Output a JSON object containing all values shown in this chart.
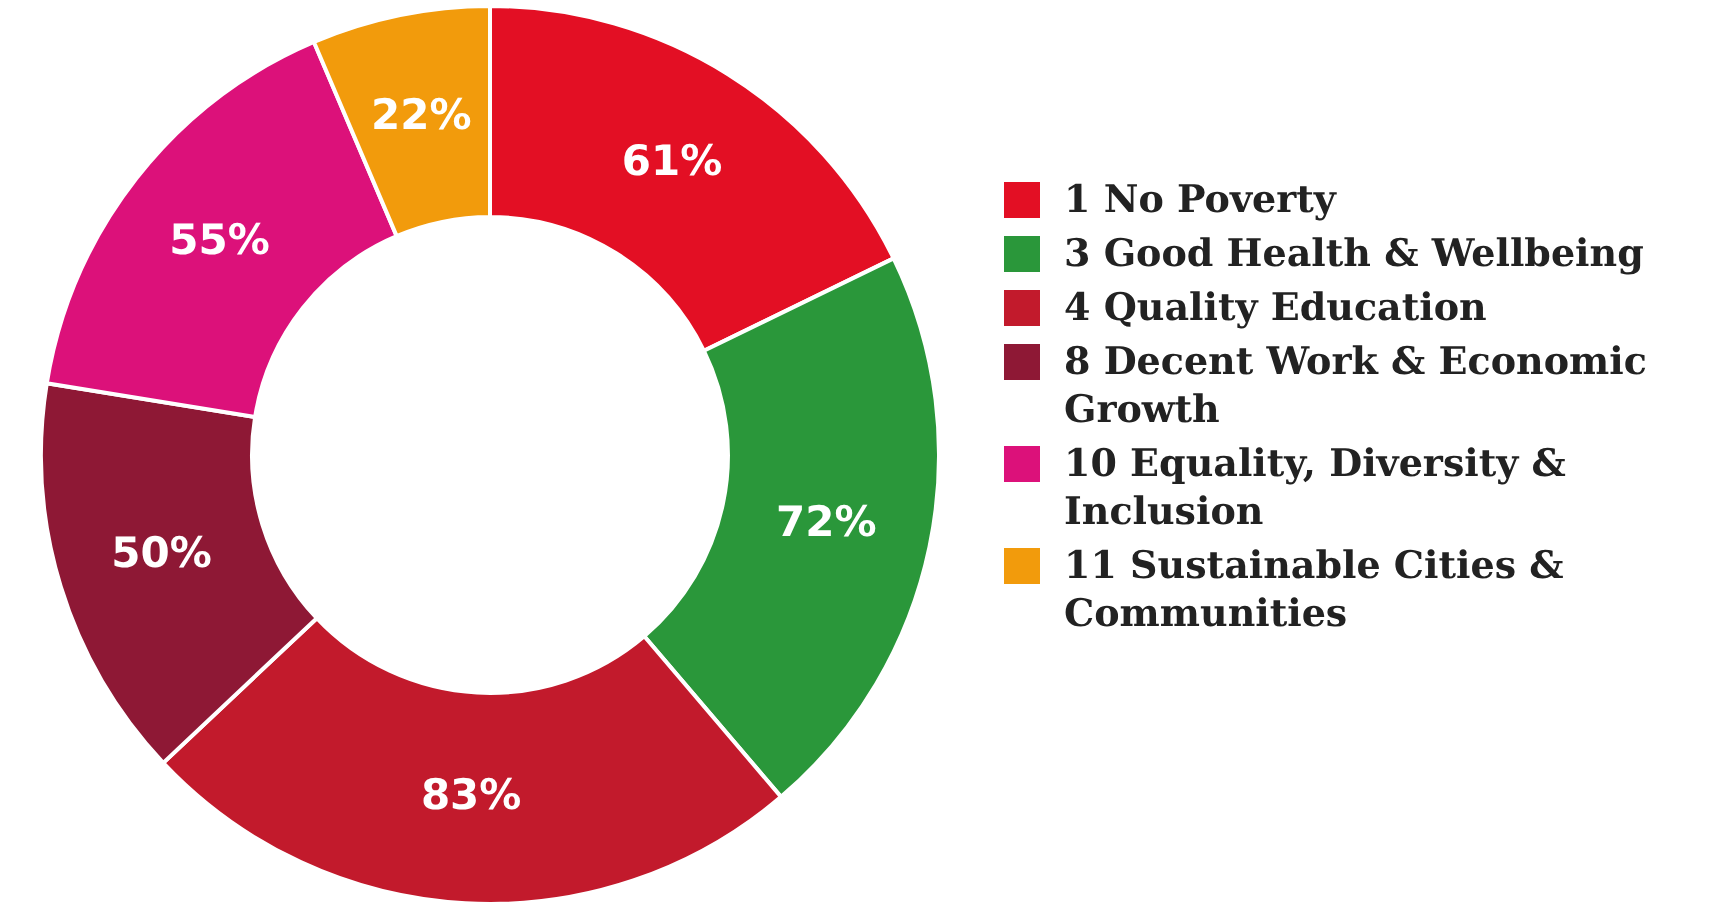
{
  "chart_data": {
    "type": "donut",
    "categories": [
      "1 No Poverty",
      "3 Good Health & Wellbeing",
      "4 Quality Education",
      "8 Decent Work & Economic Growth",
      "10 Equality, Diversity & Inclusion",
      "11 Sustainable Cities & Communities"
    ],
    "values": [
      61,
      72,
      83,
      50,
      55,
      22
    ],
    "colors": [
      "#e30f24",
      "#2a973a",
      "#c21a2c",
      "#8e1835",
      "#dc117a",
      "#f29b0c"
    ],
    "value_labels": [
      "61%",
      "72%",
      "83%",
      "50%",
      "55%",
      "22%"
    ],
    "legend": "right"
  }
}
